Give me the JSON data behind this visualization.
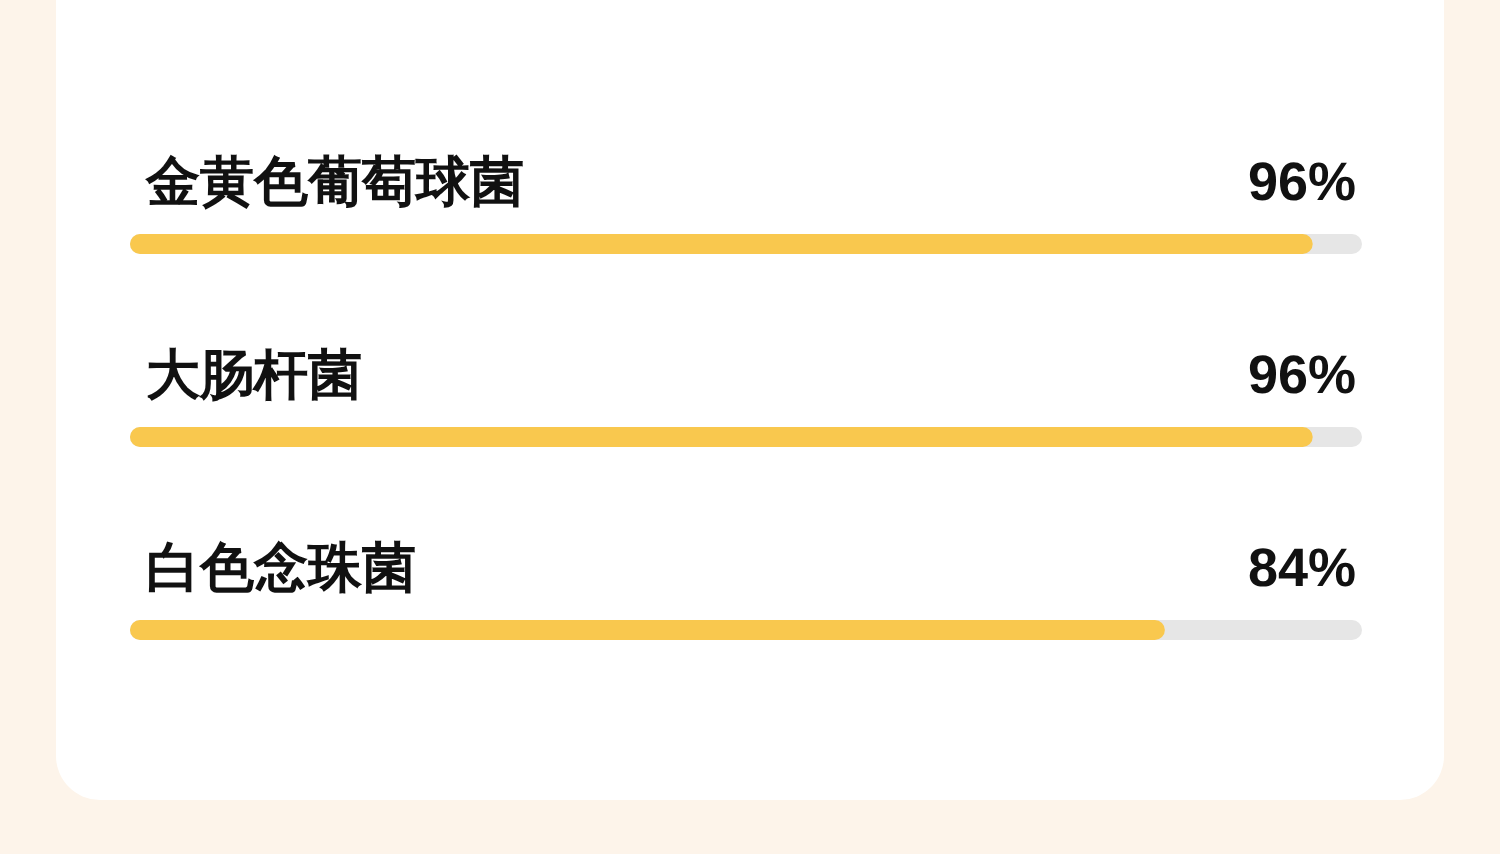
{
  "chart_data": {
    "type": "bar",
    "orientation": "horizontal",
    "categories": [
      "金黄色葡萄球菌",
      "大肠杆菌",
      "白色念珠菌"
    ],
    "values": [
      96,
      96,
      84
    ],
    "value_labels": [
      "96%",
      "96%",
      "84%"
    ],
    "color": "#f9c84e",
    "xlim": [
      0,
      100
    ],
    "tick_labels": "y"
  }
}
